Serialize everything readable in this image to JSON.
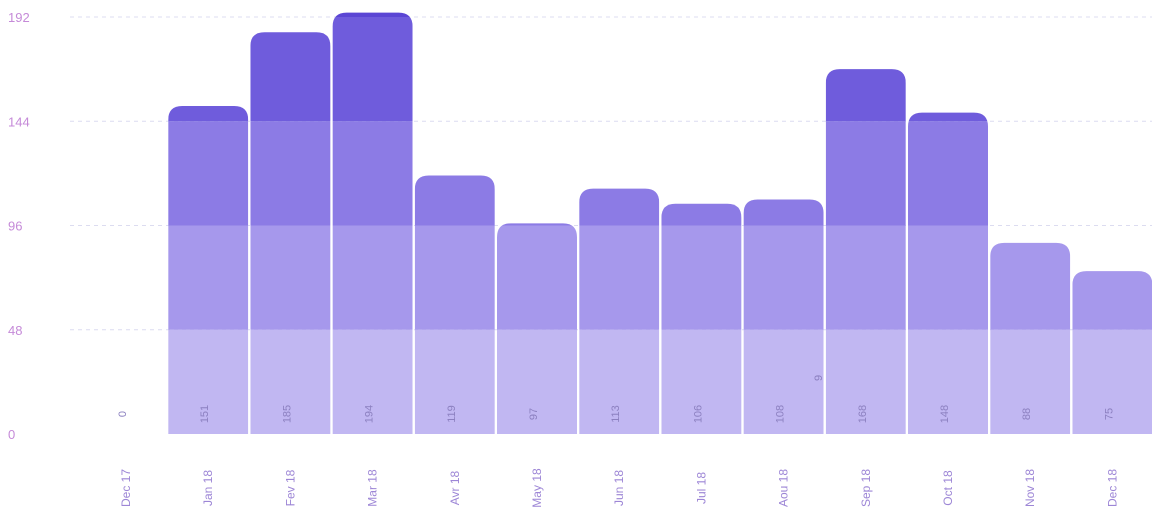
{
  "chart_data": {
    "type": "bar",
    "categories": [
      "Dec 17",
      "Jan 18",
      "Fev 18",
      "Mar 18",
      "Avr 18",
      "May 18",
      "Jun 18",
      "Jul 18",
      "Aou 18",
      "Sep 18",
      "Oct 18",
      "Nov 18",
      "Dec 18"
    ],
    "values": [
      0,
      151,
      185,
      194,
      119,
      97,
      113,
      106,
      108,
      168,
      148,
      88,
      75
    ],
    "title": "",
    "xlabel": "",
    "ylabel": "",
    "ylim": [
      0,
      192
    ],
    "yticks": [
      "0",
      "48",
      "96",
      "144",
      "192"
    ],
    "annotation": "9",
    "grid": true,
    "colors": {
      "band_0_48": "#c1b7f2",
      "band_48_96": "#a698ec",
      "band_96_144": "#8c7be5",
      "band_144_192": "#6f5cdc",
      "band_above": "#5b46d4",
      "ytick": "#c58ad8",
      "xtick": "#9d86d6",
      "grid": "#dcdcf0"
    }
  }
}
